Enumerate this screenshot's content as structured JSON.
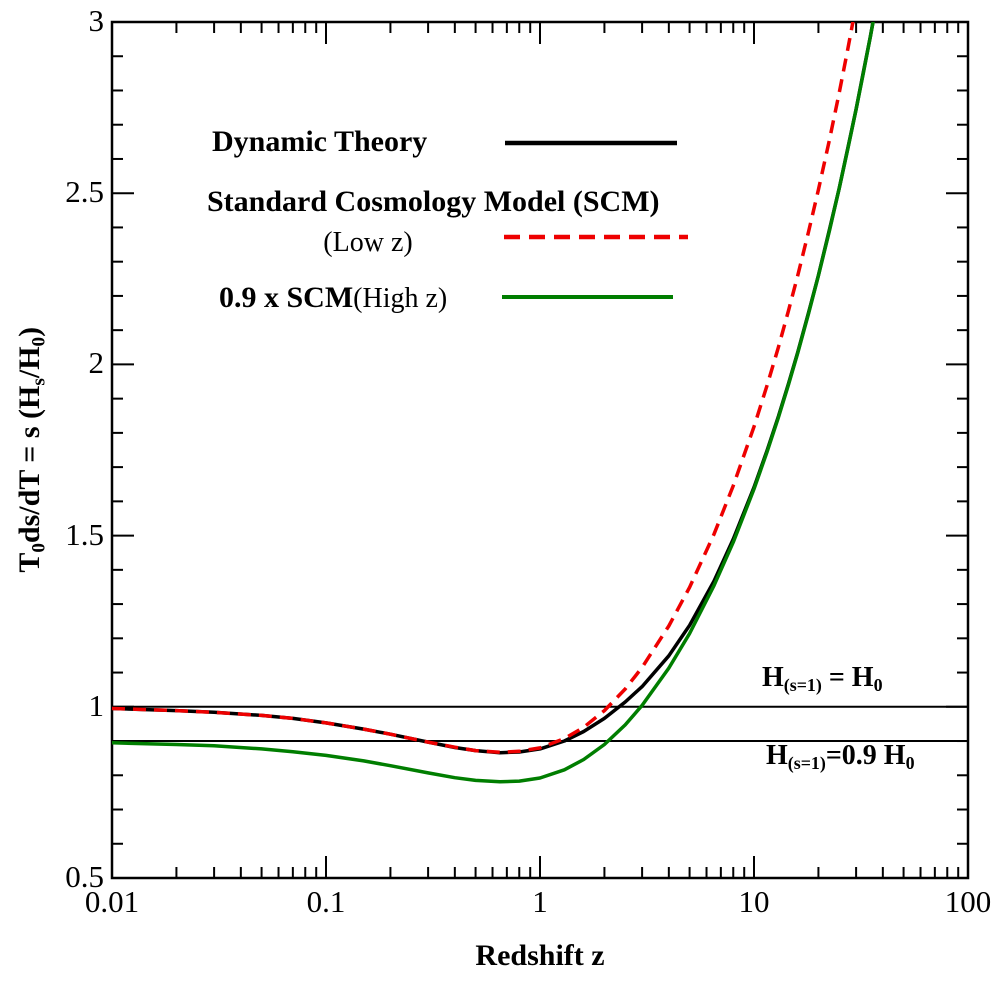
{
  "colors": {
    "black": "#000000",
    "red": "#ee0000",
    "green": "#007e00",
    "axis": "#000000"
  },
  "legend": {
    "row1_label": "Dynamic Theory",
    "row2_label": "Standard Cosmology Model (SCM)",
    "row2_sub": "(Low z)",
    "row3_label": "0.9 x SCM",
    "row3_sub": "(High z)"
  },
  "annotations": {
    "h_eq": {
      "p1": "H",
      "s1": "(s=1)",
      "p2": " = H",
      "s2": "0"
    },
    "h_09": {
      "p1": "H",
      "s1": "(s=1)",
      "p2": "=0.9 H",
      "s2": "0"
    }
  },
  "axes": {
    "x_label": "Redshift z",
    "y_label": {
      "p1": "T",
      "s1": "0",
      "p2": "ds/dT = s (H",
      "s2": "s",
      "p3": "/H",
      "s3": "0",
      "p4": ")"
    },
    "x_tick_labels": [
      "0.01",
      "0.1",
      "1",
      "10",
      "100"
    ],
    "y_tick_labels": [
      "0.5",
      "1",
      "1.5",
      "2",
      "2.5",
      "3"
    ]
  },
  "chart_data": {
    "type": "line",
    "title": "",
    "xlabel": "Redshift z",
    "ylabel": "T0 ds/dT = s (Hs/H0)",
    "x_scale": "log",
    "xlim": [
      0.01,
      100
    ],
    "ylim": [
      0.5,
      3
    ],
    "x_ticks": [
      0.01,
      0.1,
      1,
      10,
      100
    ],
    "y_ticks": [
      0.5,
      1,
      1.5,
      2,
      2.5,
      3
    ],
    "y_minor_step": 0.1,
    "grid": false,
    "legend_position": "upper-left-inside",
    "ref_lines": [
      {
        "y": 1.0,
        "label": "H(s=1) = H0"
      },
      {
        "y": 0.9,
        "label": "H(s=1)=0.9 H0"
      }
    ],
    "draw_order": [
      0,
      2,
      1
    ],
    "series": [
      {
        "name": "Dynamic Theory",
        "color": "#000000",
        "style": "solid",
        "points": [
          [
            0.01,
            0.995
          ],
          [
            0.02,
            0.989
          ],
          [
            0.03,
            0.984
          ],
          [
            0.05,
            0.975
          ],
          [
            0.07,
            0.966
          ],
          [
            0.1,
            0.953
          ],
          [
            0.15,
            0.935
          ],
          [
            0.2,
            0.92
          ],
          [
            0.3,
            0.897
          ],
          [
            0.4,
            0.881
          ],
          [
            0.5,
            0.872
          ],
          [
            0.65,
            0.866
          ],
          [
            0.8,
            0.868
          ],
          [
            1.0,
            0.877
          ],
          [
            1.3,
            0.9
          ],
          [
            1.6,
            0.928
          ],
          [
            2.0,
            0.966
          ],
          [
            2.5,
            1.014
          ],
          [
            3.0,
            1.059
          ],
          [
            4.0,
            1.149
          ],
          [
            5.0,
            1.238
          ],
          [
            6.5,
            1.367
          ],
          [
            8.0,
            1.49
          ],
          [
            10,
            1.641
          ],
          [
            11.5,
            1.748
          ],
          [
            13,
            1.848
          ],
          [
            14.5,
            1.944
          ],
          [
            16,
            2.035
          ],
          [
            18,
            2.152
          ],
          [
            20,
            2.26
          ],
          [
            22.5,
            2.393
          ],
          [
            25,
            2.514
          ],
          [
            27.5,
            2.634
          ],
          [
            30,
            2.745
          ],
          [
            32.5,
            2.856
          ],
          [
            35,
            2.958
          ],
          [
            37.5,
            3.062
          ],
          [
            40,
            3.157
          ]
        ]
      },
      {
        "name": "Standard Cosmology Model (SCM) (Low z)",
        "color": "#ee0000",
        "style": "dashed",
        "points": [
          [
            0.01,
            0.995
          ],
          [
            0.02,
            0.989
          ],
          [
            0.03,
            0.984
          ],
          [
            0.05,
            0.975
          ],
          [
            0.07,
            0.966
          ],
          [
            0.1,
            0.953
          ],
          [
            0.15,
            0.935
          ],
          [
            0.2,
            0.92
          ],
          [
            0.3,
            0.897
          ],
          [
            0.4,
            0.882
          ],
          [
            0.5,
            0.872
          ],
          [
            0.65,
            0.867
          ],
          [
            0.8,
            0.87
          ],
          [
            1.0,
            0.88
          ],
          [
            1.3,
            0.907
          ],
          [
            1.6,
            0.94
          ],
          [
            2.0,
            0.989
          ],
          [
            2.5,
            1.052
          ],
          [
            3.0,
            1.115
          ],
          [
            4.0,
            1.236
          ],
          [
            5.0,
            1.349
          ],
          [
            6.5,
            1.504
          ],
          [
            8.0,
            1.646
          ],
          [
            10,
            1.818
          ],
          [
            11.5,
            1.938
          ],
          [
            13,
            2.05
          ],
          [
            14.5,
            2.157
          ],
          [
            16,
            2.259
          ],
          [
            18,
            2.388
          ],
          [
            20,
            2.51
          ],
          [
            22.5,
            2.655
          ],
          [
            25,
            2.793
          ],
          [
            27.5,
            2.924
          ],
          [
            30,
            3.05
          ],
          [
            33,
            3.16
          ]
        ]
      },
      {
        "name": "0.9 x SCM (High z)",
        "color": "#007e00",
        "style": "solid",
        "points": [
          [
            0.01,
            0.895
          ],
          [
            0.02,
            0.89
          ],
          [
            0.03,
            0.886
          ],
          [
            0.05,
            0.877
          ],
          [
            0.07,
            0.869
          ],
          [
            0.1,
            0.858
          ],
          [
            0.15,
            0.842
          ],
          [
            0.2,
            0.828
          ],
          [
            0.3,
            0.807
          ],
          [
            0.4,
            0.793
          ],
          [
            0.5,
            0.785
          ],
          [
            0.65,
            0.781
          ],
          [
            0.8,
            0.783
          ],
          [
            1.0,
            0.792
          ],
          [
            1.3,
            0.816
          ],
          [
            1.6,
            0.846
          ],
          [
            2.0,
            0.89
          ],
          [
            2.5,
            0.947
          ],
          [
            3.0,
            1.004
          ],
          [
            4.0,
            1.113
          ],
          [
            5.0,
            1.214
          ],
          [
            6.5,
            1.354
          ],
          [
            8.0,
            1.481
          ],
          [
            10,
            1.636
          ],
          [
            11.5,
            1.744
          ],
          [
            13,
            1.845
          ],
          [
            14.5,
            1.941
          ],
          [
            16,
            2.033
          ],
          [
            18,
            2.149
          ],
          [
            20,
            2.259
          ],
          [
            22.5,
            2.39
          ],
          [
            25,
            2.514
          ],
          [
            27.5,
            2.632
          ],
          [
            30,
            2.745
          ],
          [
            32.5,
            2.853
          ],
          [
            35,
            2.958
          ],
          [
            37.5,
            3.059
          ],
          [
            40,
            3.157
          ]
        ]
      }
    ]
  }
}
